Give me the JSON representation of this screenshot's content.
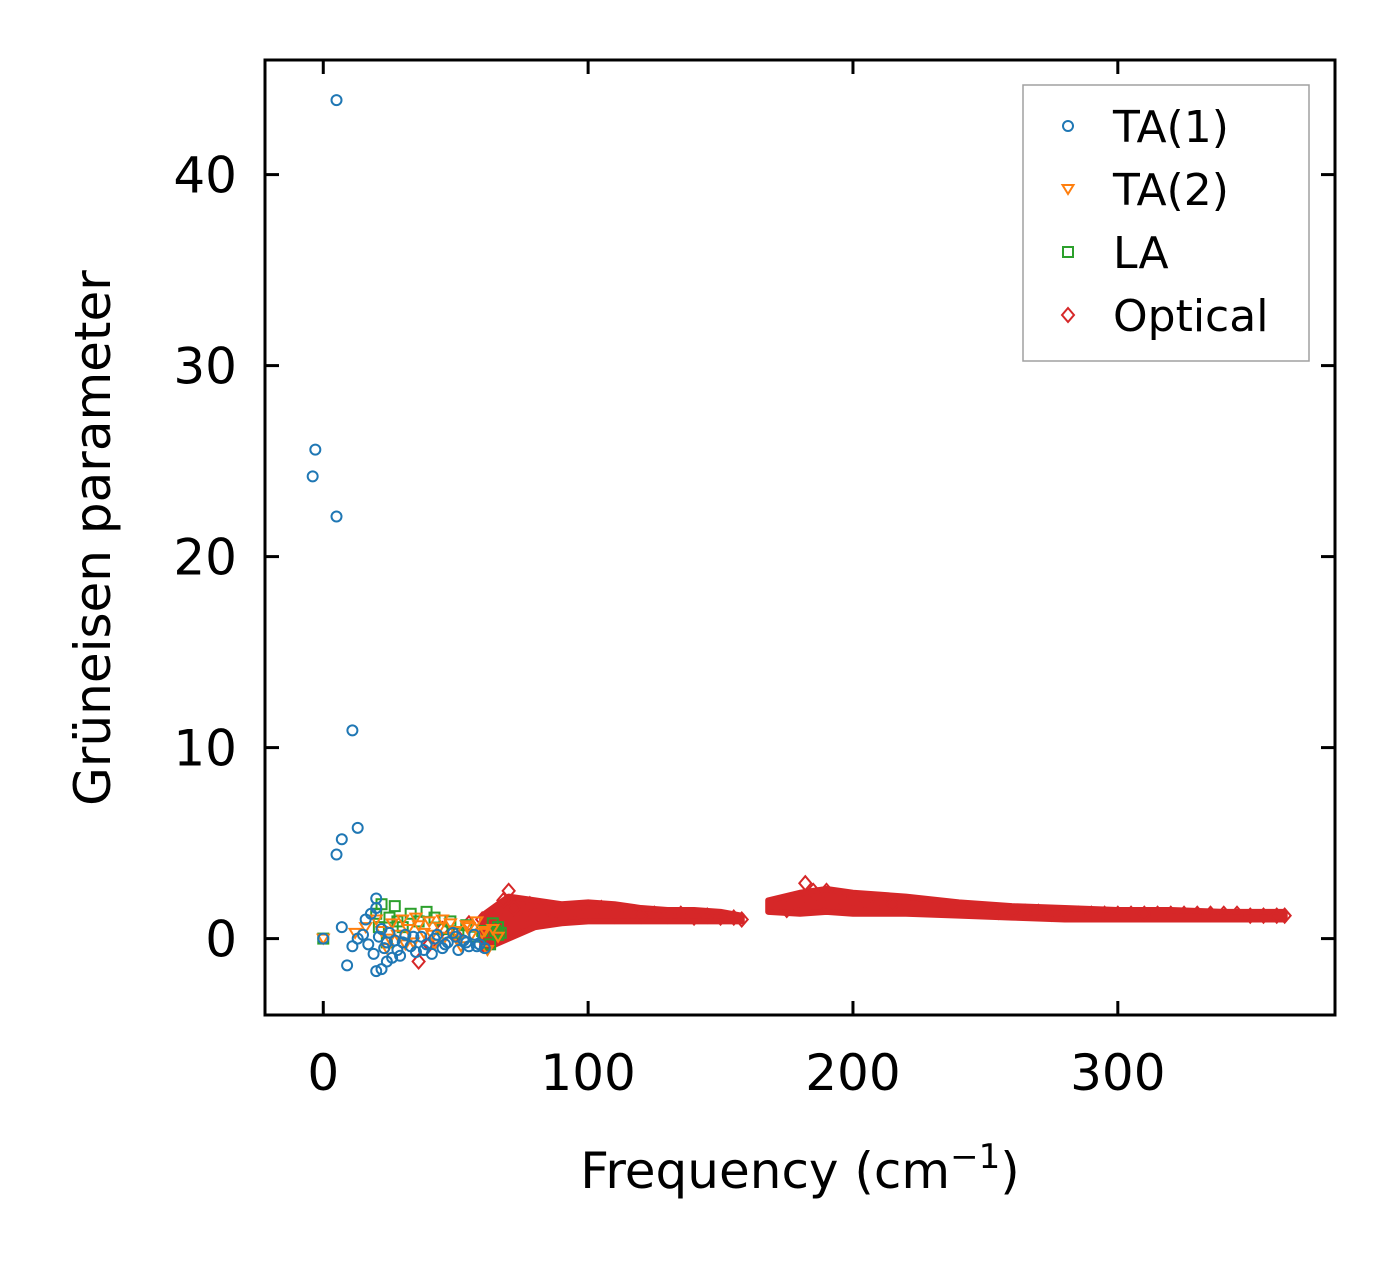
{
  "chart_data": {
    "type": "scatter",
    "title": "",
    "xlabel": "Frequency (cm",
    "xlabel_sup": "−1",
    "xlabel_close": ")",
    "ylabel": "Grüneisen parameter",
    "xlim": [
      -22,
      382
    ],
    "ylim": [
      -4,
      46
    ],
    "xticks": [
      0,
      100,
      200,
      300
    ],
    "yticks": [
      0,
      10,
      20,
      30,
      40
    ],
    "grid": false,
    "legend_position": "top-right",
    "series": [
      {
        "name": "TA(1)",
        "marker": "circle",
        "color": "#1f77b4",
        "points": [
          [
            5,
            43.9
          ],
          [
            -3,
            25.6
          ],
          [
            -4,
            24.2
          ],
          [
            5,
            22.1
          ],
          [
            11,
            10.9
          ],
          [
            13,
            5.8
          ],
          [
            7,
            5.2
          ],
          [
            5,
            4.4
          ],
          [
            7,
            0.6
          ],
          [
            20,
            2.1
          ],
          [
            20,
            1.6
          ],
          [
            18,
            1.3
          ],
          [
            16,
            1.0
          ],
          [
            22,
            0.5
          ],
          [
            24,
            -0.2
          ],
          [
            20,
            -1.7
          ],
          [
            22,
            -1.6
          ],
          [
            24,
            -1.2
          ],
          [
            9,
            -1.4
          ],
          [
            11,
            -0.4
          ],
          [
            13,
            0.0
          ],
          [
            26,
            -1.0
          ],
          [
            28,
            -0.6
          ],
          [
            0,
            0.0
          ],
          [
            15,
            0.2
          ],
          [
            17,
            -0.3
          ],
          [
            19,
            -0.8
          ],
          [
            21,
            0.1
          ],
          [
            23,
            -0.5
          ],
          [
            25,
            0.3
          ],
          [
            27,
            -0.1
          ],
          [
            29,
            -0.9
          ],
          [
            31,
            0.2
          ],
          [
            33,
            -0.4
          ],
          [
            35,
            -0.7
          ],
          [
            37,
            0.1
          ],
          [
            39,
            -0.3
          ],
          [
            41,
            -0.8
          ],
          [
            43,
            0.2
          ],
          [
            45,
            -0.5
          ],
          [
            47,
            -0.2
          ],
          [
            49,
            0.3
          ],
          [
            51,
            -0.6
          ],
          [
            53,
            -0.1
          ],
          [
            55,
            -0.4
          ],
          [
            57,
            0.2
          ],
          [
            59,
            -0.3
          ],
          [
            61,
            -0.5
          ],
          [
            30,
            -0.2
          ],
          [
            34,
            0.1
          ],
          [
            38,
            -0.6
          ],
          [
            42,
            0.0
          ],
          [
            46,
            -0.3
          ],
          [
            50,
            0.1
          ],
          [
            54,
            -0.2
          ],
          [
            58,
            -0.4
          ]
        ]
      },
      {
        "name": "TA(2)",
        "marker": "triangle-down",
        "color": "#ff7f0e",
        "points": [
          [
            0,
            0.0
          ],
          [
            12,
            0.3
          ],
          [
            16,
            0.6
          ],
          [
            20,
            1.0
          ],
          [
            22,
            0.4
          ],
          [
            24,
            -0.5
          ],
          [
            26,
            0.8
          ],
          [
            28,
            0.2
          ],
          [
            30,
            1.0
          ],
          [
            32,
            0.5
          ],
          [
            34,
            -0.2
          ],
          [
            36,
            0.7
          ],
          [
            38,
            0.3
          ],
          [
            40,
            0.9
          ],
          [
            42,
            -0.3
          ],
          [
            44,
            0.6
          ],
          [
            46,
            0.1
          ],
          [
            48,
            0.8
          ],
          [
            50,
            0.4
          ],
          [
            52,
            -0.4
          ],
          [
            54,
            0.7
          ],
          [
            56,
            0.2
          ],
          [
            58,
            0.9
          ],
          [
            60,
            0.3
          ],
          [
            62,
            -0.6
          ],
          [
            64,
            0.5
          ],
          [
            66,
            0.1
          ],
          [
            35,
            1.1
          ],
          [
            45,
            1.0
          ],
          [
            55,
            0.6
          ],
          [
            25,
            0.0
          ],
          [
            31,
            -0.3
          ],
          [
            41,
            0.2
          ],
          [
            51,
            -0.1
          ],
          [
            61,
            0.4
          ]
        ]
      },
      {
        "name": "LA",
        "marker": "square",
        "color": "#2ca02c",
        "points": [
          [
            0,
            0.0
          ],
          [
            20,
            1.3
          ],
          [
            22,
            1.8
          ],
          [
            25,
            1.1
          ],
          [
            27,
            1.7
          ],
          [
            30,
            0.6
          ],
          [
            33,
            1.3
          ],
          [
            36,
            0.9
          ],
          [
            39,
            1.4
          ],
          [
            42,
            1.1
          ],
          [
            45,
            0.5
          ],
          [
            48,
            0.9
          ],
          [
            51,
            0.3
          ],
          [
            54,
            0.7
          ],
          [
            57,
            0.1
          ],
          [
            60,
            0.4
          ],
          [
            63,
            -0.3
          ],
          [
            64,
            0.8
          ],
          [
            65,
            0.4
          ],
          [
            66,
            0.2
          ],
          [
            66,
            0.6
          ],
          [
            67,
            0.3
          ],
          [
            21,
            0.6
          ],
          [
            24,
            -0.2
          ],
          [
            28,
            0.9
          ]
        ]
      },
      {
        "name": "Optical",
        "marker": "diamond",
        "color": "#d62728",
        "points": [
          [
            36,
            -1.2
          ],
          [
            40,
            -0.3
          ],
          [
            45,
            0.5
          ],
          [
            50,
            0.2
          ],
          [
            55,
            0.8
          ],
          [
            60,
            1.0
          ],
          [
            62,
            0.0
          ],
          [
            65,
            1.3
          ],
          [
            68,
            2.0
          ],
          [
            70,
            2.5
          ],
          [
            72,
            1.6
          ],
          [
            75,
            0.9
          ],
          [
            78,
            1.8
          ],
          [
            80,
            1.2
          ],
          [
            85,
            1.6
          ],
          [
            90,
            1.1
          ],
          [
            95,
            1.5
          ],
          [
            100,
            1.3
          ],
          [
            105,
            1.6
          ],
          [
            110,
            1.2
          ],
          [
            115,
            1.4
          ],
          [
            120,
            1.2
          ],
          [
            125,
            1.3
          ],
          [
            130,
            1.2
          ],
          [
            135,
            1.3
          ],
          [
            140,
            1.1
          ],
          [
            145,
            1.2
          ],
          [
            150,
            1.1
          ],
          [
            155,
            1.1
          ],
          [
            158,
            1.0
          ],
          [
            170,
            1.7
          ],
          [
            175,
            1.5
          ],
          [
            180,
            1.9
          ],
          [
            182,
            2.9
          ],
          [
            185,
            2.5
          ],
          [
            188,
            2.0
          ],
          [
            190,
            2.5
          ],
          [
            195,
            2.2
          ],
          [
            200,
            2.1
          ],
          [
            205,
            1.9
          ],
          [
            210,
            2.0
          ],
          [
            215,
            1.8
          ],
          [
            220,
            1.8
          ],
          [
            225,
            1.7
          ],
          [
            230,
            1.7
          ],
          [
            235,
            1.6
          ],
          [
            240,
            1.6
          ],
          [
            245,
            1.5
          ],
          [
            250,
            1.5
          ],
          [
            255,
            1.4
          ],
          [
            260,
            1.4
          ],
          [
            265,
            1.4
          ],
          [
            270,
            1.4
          ],
          [
            275,
            1.3
          ],
          [
            280,
            1.3
          ],
          [
            285,
            1.3
          ],
          [
            290,
            1.3
          ],
          [
            295,
            1.3
          ],
          [
            300,
            1.3
          ],
          [
            305,
            1.3
          ],
          [
            310,
            1.3
          ],
          [
            315,
            1.3
          ],
          [
            320,
            1.3
          ],
          [
            325,
            1.3
          ],
          [
            330,
            1.3
          ],
          [
            335,
            1.3
          ],
          [
            340,
            1.3
          ],
          [
            345,
            1.3
          ],
          [
            350,
            1.2
          ],
          [
            355,
            1.2
          ],
          [
            360,
            1.2
          ],
          [
            363,
            1.2
          ]
        ]
      }
    ],
    "optical_band": {
      "segments": [
        {
          "x": [
            60,
            70,
            80,
            90,
            100,
            110,
            120,
            130,
            140,
            150,
            158
          ],
          "upper": [
            1.2,
            2.2,
            2.0,
            1.8,
            1.9,
            1.8,
            1.6,
            1.5,
            1.5,
            1.4,
            1.2
          ],
          "lower": [
            -0.6,
            0.0,
            0.6,
            0.8,
            0.9,
            0.9,
            0.9,
            0.9,
            0.9,
            0.9,
            0.9
          ]
        },
        {
          "x": [
            168,
            180,
            190,
            200,
            210,
            220,
            240,
            260,
            280,
            300,
            320,
            340,
            363
          ],
          "upper": [
            2.0,
            2.4,
            2.6,
            2.4,
            2.3,
            2.2,
            1.9,
            1.7,
            1.6,
            1.5,
            1.5,
            1.4,
            1.4
          ],
          "lower": [
            1.4,
            1.3,
            1.4,
            1.3,
            1.3,
            1.3,
            1.2,
            1.1,
            1.0,
            1.0,
            1.0,
            1.0,
            1.0
          ]
        }
      ]
    }
  }
}
